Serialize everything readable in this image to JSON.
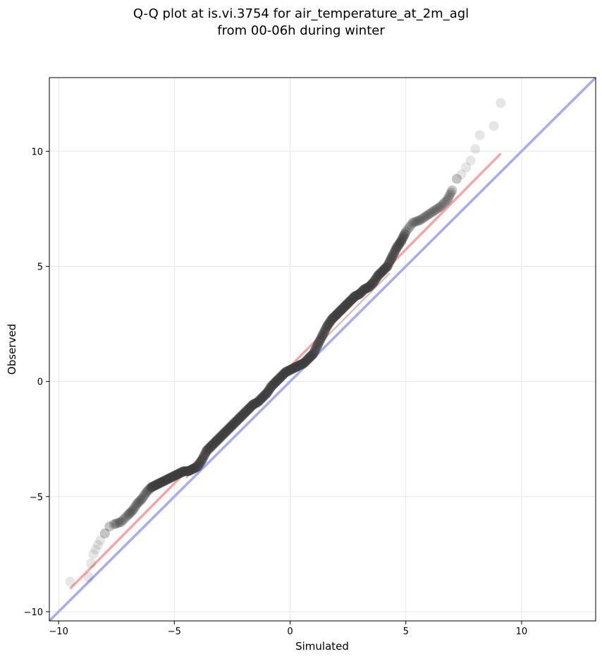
{
  "chart_data": {
    "type": "scatter",
    "title_line1": "Q-Q plot at is.vi.3754 for air_temperature_at_2m_agl",
    "title_line2": "from 00-06h during winter",
    "xlabel": "Simulated",
    "ylabel": "Observed",
    "xlim": [
      -10.4,
      13.2
    ],
    "ylim": [
      -10.4,
      13.2
    ],
    "xticks": [
      -10,
      -5,
      0,
      5,
      10
    ],
    "yticks": [
      -10,
      -5,
      0,
      5,
      10
    ],
    "xtick_labels": [
      "−10",
      "−5",
      "0",
      "5",
      "10"
    ],
    "ytick_labels": [
      "−10",
      "−5",
      "0",
      "5",
      "10"
    ],
    "grid": true,
    "colors": {
      "points": "#3c3c3c",
      "identity_line": "#a8aaf2",
      "fit_line": "#f4a6a6",
      "inner_fit": "#c01818",
      "inner_points": "#1a1a8c"
    },
    "identity_line": {
      "x": [
        -10.4,
        13.2
      ],
      "y": [
        -10.4,
        13.2
      ]
    },
    "fit_line": {
      "x": [
        -9.5,
        9.1
      ],
      "y": [
        -9.0,
        9.9
      ]
    },
    "quantiles": {
      "simulated": [
        -9.5,
        -8.7,
        -8.6,
        -8.5,
        -8.4,
        -8.3,
        -8.2,
        -8.0,
        -7.8,
        -7.6,
        -7.3,
        -7.0,
        -6.8,
        -6.6,
        -6.4,
        -6.2,
        -6.0,
        -5.8,
        -5.6,
        -5.4,
        -5.2,
        -5.0,
        -4.8,
        -4.6,
        -4.4,
        -4.2,
        -4.0,
        -3.8,
        -3.6,
        -3.4,
        -3.2,
        -3.0,
        -2.8,
        -2.6,
        -2.4,
        -2.2,
        -2.0,
        -1.8,
        -1.6,
        -1.4,
        -1.2,
        -1.0,
        -0.8,
        -0.6,
        -0.4,
        -0.2,
        0.0,
        0.2,
        0.4,
        0.6,
        0.8,
        1.0,
        1.2,
        1.4,
        1.6,
        1.8,
        2.0,
        2.2,
        2.4,
        2.6,
        2.8,
        3.0,
        3.2,
        3.4,
        3.6,
        3.8,
        4.0,
        4.2,
        4.4,
        4.6,
        4.8,
        5.0,
        5.3,
        5.6,
        5.9,
        6.2,
        6.5,
        6.8,
        7.0,
        7.2,
        7.4,
        7.6,
        7.8,
        8.0,
        8.2,
        8.8,
        9.1
      ],
      "observed": [
        -8.7,
        -8.5,
        -7.9,
        -7.5,
        -7.3,
        -7.1,
        -6.9,
        -6.6,
        -6.3,
        -6.2,
        -6.1,
        -5.8,
        -5.6,
        -5.3,
        -5.1,
        -4.8,
        -4.6,
        -4.5,
        -4.4,
        -4.3,
        -4.2,
        -4.1,
        -4.0,
        -3.9,
        -3.9,
        -3.8,
        -3.7,
        -3.4,
        -3.0,
        -2.8,
        -2.6,
        -2.4,
        -2.2,
        -2.0,
        -1.8,
        -1.6,
        -1.4,
        -1.2,
        -1.0,
        -0.9,
        -0.7,
        -0.5,
        -0.2,
        0.0,
        0.2,
        0.4,
        0.5,
        0.6,
        0.7,
        0.8,
        1.0,
        1.2,
        1.6,
        2.0,
        2.4,
        2.7,
        2.9,
        3.1,
        3.3,
        3.5,
        3.7,
        3.8,
        4.0,
        4.1,
        4.3,
        4.6,
        4.8,
        5.0,
        5.4,
        5.8,
        6.1,
        6.5,
        6.9,
        7.0,
        7.2,
        7.4,
        7.6,
        7.9,
        8.3,
        8.8,
        9.0,
        9.3,
        9.6,
        10.1,
        10.7,
        11.1,
        12.1
      ]
    }
  }
}
